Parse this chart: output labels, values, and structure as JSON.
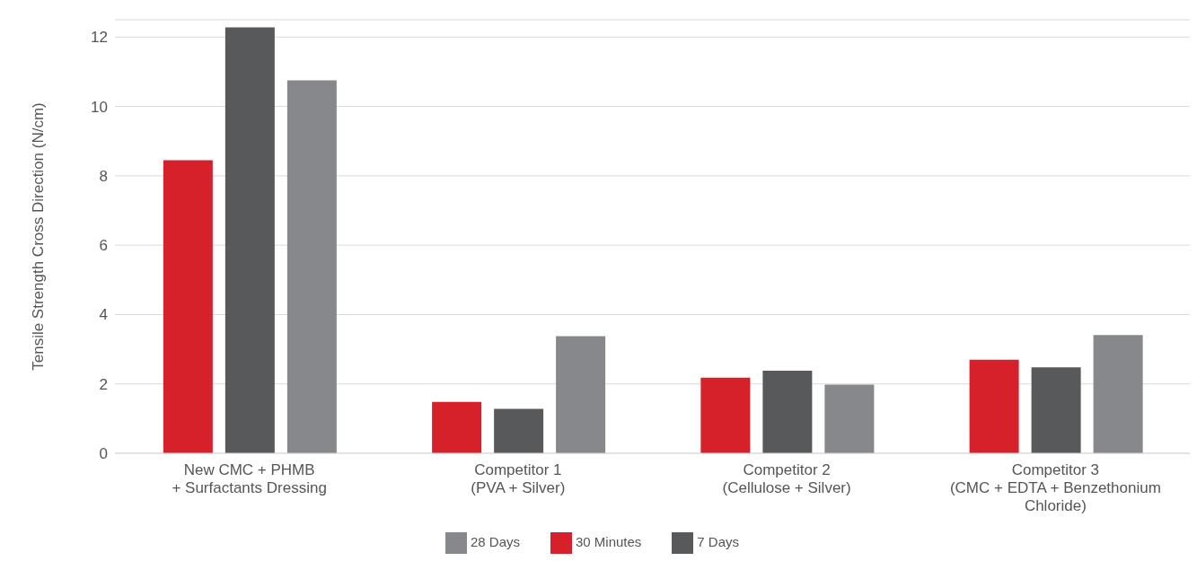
{
  "chart_data": {
    "type": "bar",
    "ylabel": "Tensile Strength Cross Direction (N/cm)",
    "categories": [
      "New CMC + PHMB\n+ Surfactants Dressing",
      "Competitor 1\n(PVA + Silver)",
      "Competitor 2\n(Cellulose + Silver)",
      "Competitor 3\n(CMC + EDTA + Benzethonium\nChloride)"
    ],
    "series": [
      {
        "name": "30 Minutes",
        "color": "#d7212a",
        "values": [
          8.45,
          1.48,
          2.18,
          2.7
        ]
      },
      {
        "name": "7 Days",
        "color": "#58595b",
        "values": [
          12.28,
          1.28,
          2.38,
          2.48
        ]
      },
      {
        "name": "28 Days",
        "color": "#87888b",
        "values": [
          10.75,
          3.38,
          1.98,
          3.41
        ]
      }
    ],
    "ylim": [
      0,
      12.5
    ],
    "yticks": [
      0,
      2,
      4,
      6,
      8,
      10,
      12
    ],
    "grid": "y",
    "legend": "bottom"
  }
}
